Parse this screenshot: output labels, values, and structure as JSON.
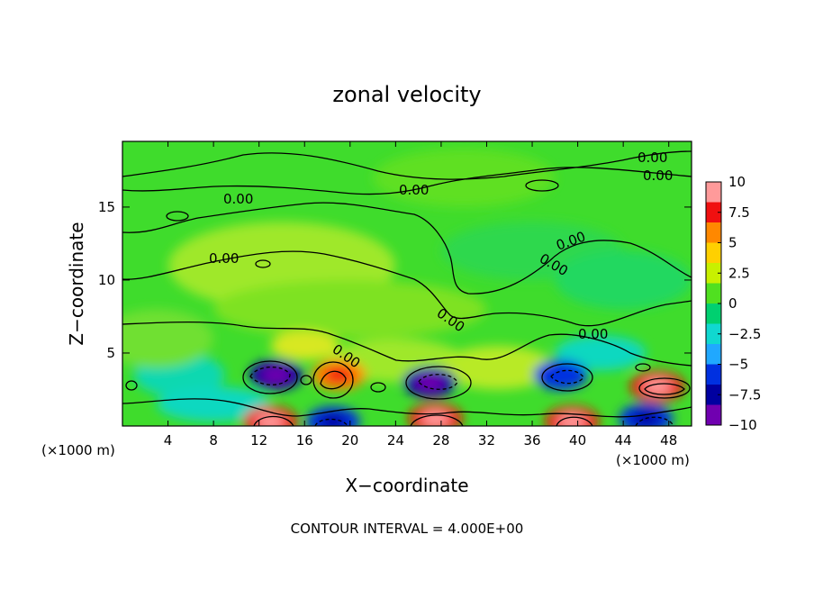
{
  "chart_data": {
    "type": "heatmap",
    "title": "zonal velocity",
    "xlabel": "X−coordinate",
    "ylabel": "Z−coordinate",
    "x_unit_left": "(×1000 m)",
    "x_unit_right": "(×1000 m)",
    "xlim": [
      0,
      50
    ],
    "ylim": [
      0,
      19.5
    ],
    "x_ticks": [
      4,
      8,
      12,
      16,
      20,
      24,
      28,
      32,
      36,
      40,
      44,
      48
    ],
    "y_ticks": [
      5,
      10,
      15
    ],
    "colorbar": {
      "ticks": [
        "10",
        "7.5",
        "5",
        "2.5",
        "0",
        "−2.5",
        "−5",
        "−7.5",
        "−10"
      ],
      "values": [
        10,
        7.5,
        5,
        2.5,
        0,
        -2.5,
        -5,
        -7.5,
        -10
      ],
      "colors": [
        "#ff9a9a",
        "#f01010",
        "#ff8800",
        "#ffd000",
        "#c8f000",
        "#50e020",
        "#00d070",
        "#10d8d0",
        "#20a8ff",
        "#0030e0",
        "#0000a0",
        "#7000b0"
      ]
    },
    "contour_labels": [
      "0.00",
      "0.00",
      "0.00",
      "0.00",
      "0.00",
      "0.00",
      "0.00",
      "0.00",
      "0.00",
      "0.00"
    ],
    "features": [
      {
        "x": 13.5,
        "z": 3.5,
        "value": -7,
        "kind": "min"
      },
      {
        "x": 19,
        "z": 3.5,
        "value": 6,
        "kind": "max"
      },
      {
        "x": 27,
        "z": 3.0,
        "value": -7,
        "kind": "min"
      },
      {
        "x": 38.5,
        "z": 3.5,
        "value": -5,
        "kind": "min"
      },
      {
        "x": 47,
        "z": 2.7,
        "value": 8,
        "kind": "max"
      },
      {
        "x": 13,
        "z": 0.3,
        "value": 8,
        "kind": "max"
      },
      {
        "x": 18.5,
        "z": 0.3,
        "value": -6,
        "kind": "min"
      },
      {
        "x": 27.5,
        "z": 0.5,
        "value": 8,
        "kind": "max"
      },
      {
        "x": 39.5,
        "z": 0.3,
        "value": 7,
        "kind": "max"
      },
      {
        "x": 46,
        "z": 0.5,
        "value": -6,
        "kind": "min"
      }
    ],
    "footer": "CONTOUR INTERVAL = 4.000E+00"
  }
}
